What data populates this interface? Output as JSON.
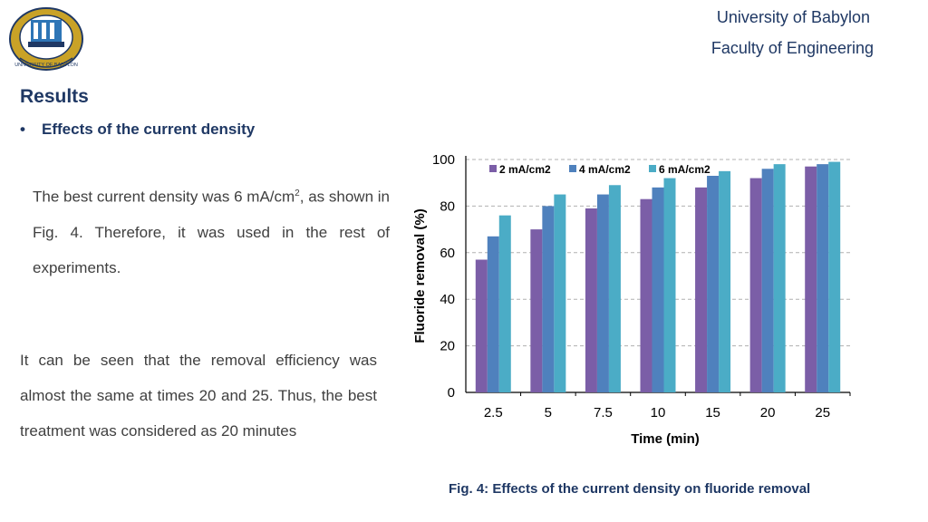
{
  "header": {
    "university": "University of Babylon",
    "faculty": "Faculty of Engineering",
    "logo_text": "UNIVERSITY OF BABYLON"
  },
  "results": {
    "heading": "Results",
    "bullet": "Effects of the current density"
  },
  "para1": {
    "before_sup": "The best current density was 6 mA/cm",
    "sup": "2",
    "after_sup": ", as shown in Fig. 4. Therefore, it was used in the rest of experiments."
  },
  "para2": "It can be seen that the removal efficiency was almost the same at times 20 and 25. Thus, the best treatment was considered as 20 minutes",
  "caption": "Fig. 4: Effects of the current density on fluoride removal",
  "chart_data": {
    "type": "bar",
    "xlabel": "Time (min)",
    "ylabel": "Fluoride removal (%)",
    "ylim": [
      0,
      100
    ],
    "yticks": [
      0,
      20,
      40,
      60,
      80,
      100
    ],
    "grid": true,
    "legend": "top",
    "categories": [
      "2.5",
      "5",
      "7.5",
      "10",
      "15",
      "20",
      "25"
    ],
    "series": [
      {
        "name": "2 mA/cm2",
        "color": "#7b5ea7",
        "values": [
          57,
          70,
          79,
          83,
          88,
          92,
          97
        ]
      },
      {
        "name": "4 mA/cm2",
        "color": "#4f81bd",
        "values": [
          67,
          80,
          85,
          88,
          93,
          96,
          98
        ]
      },
      {
        "name": "6 mA/cm2",
        "color": "#4bacc6",
        "values": [
          76,
          85,
          89,
          92,
          95,
          98,
          99
        ]
      }
    ]
  }
}
